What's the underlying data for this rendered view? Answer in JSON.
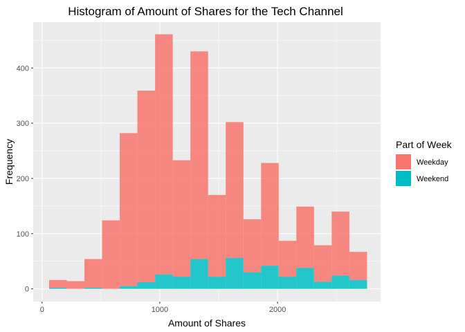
{
  "chart_data": {
    "type": "bar",
    "title": "Histogram of Amount of Shares for the Tech Channel",
    "xlabel": "Amount of Shares",
    "ylabel": "Frequency",
    "xlim": [
      -75,
      2875
    ],
    "ylim": [
      -23,
      483
    ],
    "x_ticks": [
      0,
      1000,
      2000
    ],
    "y_ticks": [
      0,
      100,
      200,
      300,
      400
    ],
    "bin_width": 150,
    "bins": [
      [
        60,
        210
      ],
      [
        210,
        360
      ],
      [
        360,
        510
      ],
      [
        510,
        660
      ],
      [
        660,
        810
      ],
      [
        810,
        960
      ],
      [
        960,
        1110
      ],
      [
        1110,
        1260
      ],
      [
        1260,
        1410
      ],
      [
        1410,
        1560
      ],
      [
        1560,
        1710
      ],
      [
        1710,
        1860
      ],
      [
        1860,
        2010
      ],
      [
        2010,
        2160
      ],
      [
        2160,
        2310
      ],
      [
        2310,
        2460
      ],
      [
        2460,
        2610
      ],
      [
        2610,
        2760
      ]
    ],
    "stacked": true,
    "grid": true,
    "legend": {
      "title": "Part of Week",
      "position": "right"
    },
    "series": [
      {
        "name": "Weekday",
        "color": "#F8766D",
        "values": [
          14,
          14,
          52,
          124,
          277,
          347,
          435,
          211,
          376,
          148,
          246,
          96,
          186,
          65,
          111,
          66,
          116,
          51
        ]
      },
      {
        "name": "Weekend",
        "color": "#00BFC4",
        "values": [
          2,
          0,
          2,
          0,
          5,
          12,
          26,
          22,
          54,
          22,
          56,
          30,
          42,
          22,
          38,
          13,
          24,
          16
        ]
      }
    ]
  }
}
